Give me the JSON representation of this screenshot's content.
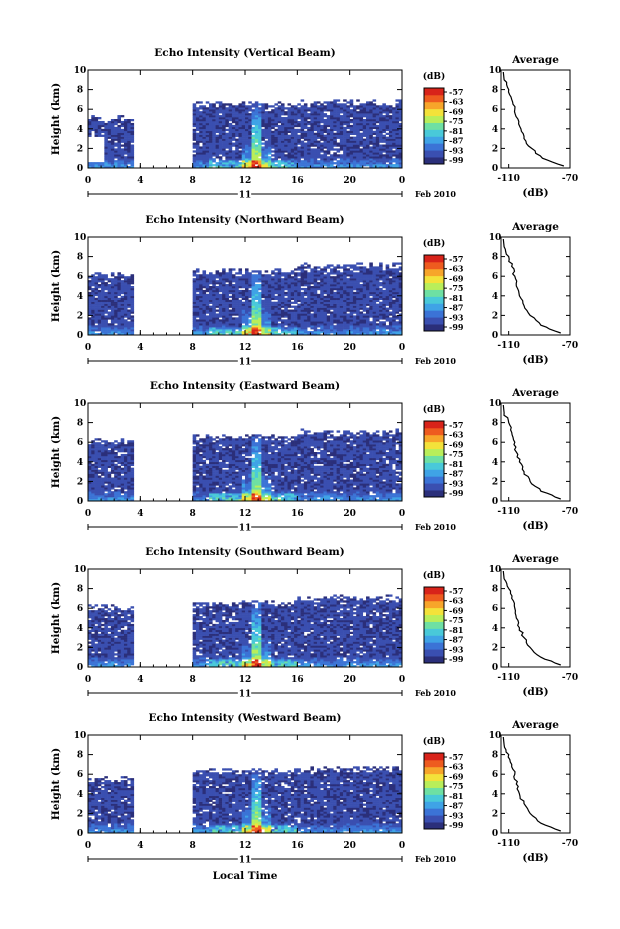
{
  "figure": {
    "footer_label": "Local Time",
    "date_text": "Feb 2010",
    "day_label": "11",
    "colorbar_unit": "(dB)",
    "colorbar_ticks": [
      "-57",
      "-63",
      "-69",
      "-75",
      "-81",
      "-87",
      "-93",
      "-99"
    ],
    "profile_title": "Average",
    "profile_xlabel": "(dB)",
    "colormap": [
      "#2b2f7a",
      "#3a4fb0",
      "#3b73d6",
      "#3fa3e6",
      "#49c9d9",
      "#6ee0a3",
      "#b9ee5a",
      "#f3e23a",
      "#f7a52a",
      "#ee5b1f",
      "#d8231a"
    ]
  },
  "chart_data": [
    {
      "type": "heatmap",
      "title": "Echo Intensity (Vertical Beam)",
      "ylabel": "Height (km)",
      "xlim": [
        0,
        24
      ],
      "ylim": [
        0,
        10
      ],
      "x_ticks": [
        "0",
        "4",
        "8",
        "12",
        "16",
        "20",
        "0"
      ],
      "y_ticks": [
        "0",
        "2",
        "4",
        "6",
        "8",
        "10"
      ],
      "gaps_hours": [
        [
          3.3,
          8.0
        ]
      ],
      "clear_hours": [
        [
          0.0,
          1.2
        ]
      ],
      "bright_column_hours": 12.75,
      "echo_top_km": [
        4.6,
        6.0,
        6.2
      ],
      "colorbar_range_db": [
        -99,
        -57
      ],
      "profile": {
        "xlim": [
          -115,
          -70
        ],
        "x_ticks": [
          "-110",
          "-70"
        ],
        "y_ticks": [
          "0",
          "2",
          "4",
          "6",
          "8",
          "10"
        ],
        "height_km": [
          0.2,
          1.0,
          2.0,
          3.0,
          4.0,
          5.0,
          6.0,
          7.0,
          8.0,
          9.0
        ],
        "value_db": [
          -74,
          -88,
          -95,
          -100,
          -102,
          -104,
          -106,
          -108,
          -110,
          -113
        ]
      }
    },
    {
      "type": "heatmap",
      "title": "Echo Intensity (Northward Beam)",
      "ylabel": "Height (km)",
      "xlim": [
        0,
        24
      ],
      "ylim": [
        0,
        10
      ],
      "x_ticks": [
        "0",
        "4",
        "8",
        "12",
        "16",
        "20",
        "0"
      ],
      "y_ticks": [
        "0",
        "2",
        "4",
        "6",
        "8",
        "10"
      ],
      "gaps_hours": [
        [
          3.3,
          8.0
        ]
      ],
      "clear_hours": [],
      "bright_column_hours": 12.75,
      "echo_top_km": [
        5.6,
        6.0,
        6.5
      ],
      "colorbar_range_db": [
        -99,
        -57
      ],
      "profile": {
        "xlim": [
          -115,
          -70
        ],
        "x_ticks": [
          "-110",
          "-70"
        ],
        "y_ticks": [
          "0",
          "2",
          "4",
          "6",
          "8",
          "10"
        ],
        "height_km": [
          0.2,
          1.0,
          2.0,
          3.0,
          4.0,
          5.0,
          6.0,
          7.0,
          8.0,
          9.0
        ],
        "value_db": [
          -76,
          -89,
          -96,
          -100,
          -103,
          -105,
          -106,
          -108,
          -110,
          -113
        ]
      }
    },
    {
      "type": "heatmap",
      "title": "Echo Intensity (Eastward Beam)",
      "ylabel": "Height (km)",
      "xlim": [
        0,
        24
      ],
      "ylim": [
        0,
        10
      ],
      "x_ticks": [
        "0",
        "4",
        "8",
        "12",
        "16",
        "20",
        "0"
      ],
      "y_ticks": [
        "0",
        "2",
        "4",
        "6",
        "8",
        "10"
      ],
      "gaps_hours": [
        [
          3.3,
          8.0
        ]
      ],
      "clear_hours": [],
      "bright_column_hours": 12.75,
      "echo_top_km": [
        5.6,
        6.0,
        6.5
      ],
      "colorbar_range_db": [
        -99,
        -57
      ],
      "profile": {
        "xlim": [
          -115,
          -70
        ],
        "x_ticks": [
          "-110",
          "-70"
        ],
        "y_ticks": [
          "0",
          "2",
          "4",
          "6",
          "8",
          "10"
        ],
        "height_km": [
          0.2,
          1.0,
          2.0,
          3.0,
          4.0,
          5.0,
          6.0,
          7.0,
          8.0,
          9.0
        ],
        "value_db": [
          -76,
          -89,
          -96,
          -100,
          -103,
          -105,
          -106,
          -108,
          -110,
          -113
        ]
      }
    },
    {
      "type": "heatmap",
      "title": "Echo Intensity (Southward Beam)",
      "ylabel": "Height (km)",
      "xlim": [
        0,
        24
      ],
      "ylim": [
        0,
        10
      ],
      "x_ticks": [
        "0",
        "4",
        "8",
        "12",
        "16",
        "20",
        "0"
      ],
      "y_ticks": [
        "0",
        "2",
        "4",
        "6",
        "8",
        "10"
      ],
      "gaps_hours": [
        [
          3.3,
          8.0
        ]
      ],
      "clear_hours": [],
      "bright_column_hours": 12.75,
      "echo_top_km": [
        5.6,
        6.0,
        6.5
      ],
      "colorbar_range_db": [
        -99,
        -57
      ],
      "profile": {
        "xlim": [
          -115,
          -70
        ],
        "x_ticks": [
          "-110",
          "-70"
        ],
        "y_ticks": [
          "0",
          "2",
          "4",
          "6",
          "8",
          "10"
        ],
        "height_km": [
          0.2,
          1.0,
          2.0,
          3.0,
          4.0,
          5.0,
          6.0,
          7.0,
          8.0,
          9.0
        ],
        "value_db": [
          -76,
          -89,
          -96,
          -100,
          -103,
          -105,
          -106,
          -108,
          -110,
          -113
        ]
      }
    },
    {
      "type": "heatmap",
      "title": "Echo Intensity (Westward Beam)",
      "ylabel": "Height (km)",
      "xlim": [
        0,
        24
      ],
      "ylim": [
        0,
        10
      ],
      "x_ticks": [
        "0",
        "4",
        "8",
        "12",
        "16",
        "20",
        "0"
      ],
      "y_ticks": [
        "0",
        "2",
        "4",
        "6",
        "8",
        "10"
      ],
      "gaps_hours": [
        [
          3.3,
          8.0
        ]
      ],
      "clear_hours": [],
      "bright_column_hours": 12.75,
      "echo_top_km": [
        5.0,
        5.8,
        6.0
      ],
      "colorbar_range_db": [
        -99,
        -57
      ],
      "profile": {
        "xlim": [
          -115,
          -70
        ],
        "x_ticks": [
          "-110",
          "-70"
        ],
        "y_ticks": [
          "0",
          "2",
          "4",
          "6",
          "8",
          "10"
        ],
        "height_km": [
          0.2,
          1.0,
          2.0,
          3.0,
          4.0,
          5.0,
          6.0,
          7.0,
          8.0,
          9.0
        ],
        "value_db": [
          -76,
          -89,
          -96,
          -100,
          -103,
          -105,
          -106,
          -108,
          -110,
          -113
        ]
      }
    }
  ]
}
